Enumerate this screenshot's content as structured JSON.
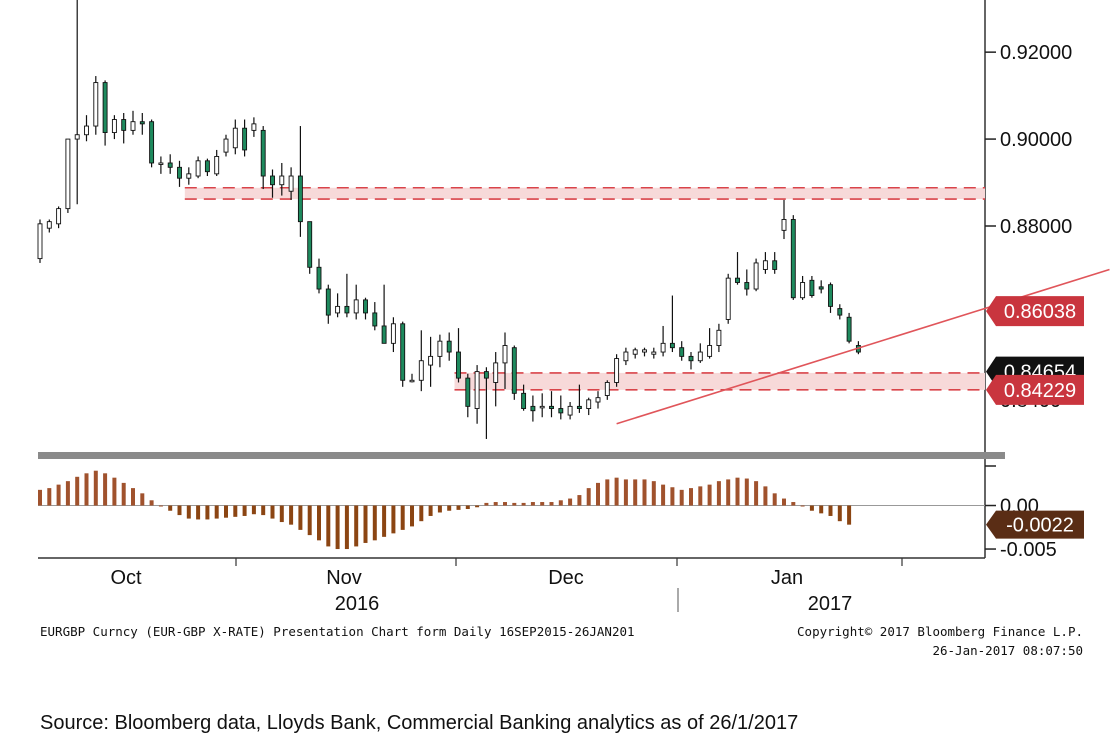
{
  "chart_data": [
    {
      "type": "candlestick",
      "ticker": "EURGBP Curncy (EUR-GBP X-RATE) Presentation Chart form Daily 16SEP2015-26JAN201",
      "copyright": "Copyright© 2017 Bloomberg Finance L.P.",
      "timestamp": "26-Jan-2017 08:07:50",
      "ylim": [
        0.828,
        0.932
      ],
      "yticks": [
        "0.92000",
        "0.90000",
        "0.88000"
      ],
      "hidden_tick_fragments": [
        "0.8465",
        "0.8400"
      ],
      "x_month_labels": [
        "Oct",
        "Nov",
        "Dec",
        "Jan"
      ],
      "x_year_labels": [
        "2016",
        "2017"
      ],
      "colors": {
        "up": "#ffffff",
        "down": "#1e8a5e",
        "outline": "#111111",
        "band_line": "#d9444a",
        "band_fill": "#f7d9d9",
        "trend": "#e0555a",
        "tag": "#c9353e",
        "tag_dark": "#111111"
      },
      "candles": [
        {
          "o": 0.8725,
          "h": 0.8815,
          "l": 0.8715,
          "c": 0.8805
        },
        {
          "o": 0.8795,
          "h": 0.8815,
          "l": 0.8785,
          "c": 0.881
        },
        {
          "o": 0.8805,
          "h": 0.8845,
          "l": 0.8795,
          "c": 0.884
        },
        {
          "o": 0.884,
          "h": 0.9,
          "l": 0.883,
          "c": 0.9
        },
        {
          "o": 0.9,
          "h": 0.95,
          "l": 0.885,
          "c": 0.901
        },
        {
          "o": 0.901,
          "h": 0.9055,
          "l": 0.8995,
          "c": 0.903
        },
        {
          "o": 0.903,
          "h": 0.9145,
          "l": 0.901,
          "c": 0.913
        },
        {
          "o": 0.913,
          "h": 0.9135,
          "l": 0.8985,
          "c": 0.9015
        },
        {
          "o": 0.9015,
          "h": 0.9055,
          "l": 0.9,
          "c": 0.9045
        },
        {
          "o": 0.9045,
          "h": 0.906,
          "l": 0.899,
          "c": 0.902
        },
        {
          "o": 0.902,
          "h": 0.9065,
          "l": 0.901,
          "c": 0.904
        },
        {
          "o": 0.904,
          "h": 0.906,
          "l": 0.901,
          "c": 0.9035
        },
        {
          "o": 0.904,
          "h": 0.9045,
          "l": 0.8935,
          "c": 0.8945
        },
        {
          "o": 0.8945,
          "h": 0.896,
          "l": 0.892,
          "c": 0.8945
        },
        {
          "o": 0.8945,
          "h": 0.8965,
          "l": 0.892,
          "c": 0.8935
        },
        {
          "o": 0.8935,
          "h": 0.895,
          "l": 0.889,
          "c": 0.891
        },
        {
          "o": 0.891,
          "h": 0.8935,
          "l": 0.8895,
          "c": 0.892
        },
        {
          "o": 0.8915,
          "h": 0.896,
          "l": 0.891,
          "c": 0.895
        },
        {
          "o": 0.895,
          "h": 0.8955,
          "l": 0.8915,
          "c": 0.8925
        },
        {
          "o": 0.892,
          "h": 0.8975,
          "l": 0.8915,
          "c": 0.896
        },
        {
          "o": 0.897,
          "h": 0.901,
          "l": 0.896,
          "c": 0.9
        },
        {
          "o": 0.898,
          "h": 0.9045,
          "l": 0.8965,
          "c": 0.9025
        },
        {
          "o": 0.9025,
          "h": 0.9045,
          "l": 0.896,
          "c": 0.8975
        },
        {
          "o": 0.902,
          "h": 0.905,
          "l": 0.9005,
          "c": 0.9035
        },
        {
          "o": 0.902,
          "h": 0.903,
          "l": 0.8885,
          "c": 0.8915
        },
        {
          "o": 0.8915,
          "h": 0.893,
          "l": 0.8865,
          "c": 0.8895
        },
        {
          "o": 0.8895,
          "h": 0.8945,
          "l": 0.887,
          "c": 0.8915
        },
        {
          "o": 0.888,
          "h": 0.8935,
          "l": 0.886,
          "c": 0.8915
        },
        {
          "o": 0.8915,
          "h": 0.903,
          "l": 0.8775,
          "c": 0.881
        },
        {
          "o": 0.881,
          "h": 0.881,
          "l": 0.869,
          "c": 0.8705
        },
        {
          "o": 0.8705,
          "h": 0.8725,
          "l": 0.8645,
          "c": 0.8655
        },
        {
          "o": 0.8655,
          "h": 0.8665,
          "l": 0.8575,
          "c": 0.8595
        },
        {
          "o": 0.86,
          "h": 0.8645,
          "l": 0.859,
          "c": 0.8615
        },
        {
          "o": 0.8615,
          "h": 0.869,
          "l": 0.859,
          "c": 0.86
        },
        {
          "o": 0.86,
          "h": 0.8665,
          "l": 0.8585,
          "c": 0.863
        },
        {
          "o": 0.863,
          "h": 0.8635,
          "l": 0.8585,
          "c": 0.86
        },
        {
          "o": 0.86,
          "h": 0.8625,
          "l": 0.856,
          "c": 0.857
        },
        {
          "o": 0.857,
          "h": 0.8665,
          "l": 0.854,
          "c": 0.853
        },
        {
          "o": 0.853,
          "h": 0.859,
          "l": 0.851,
          "c": 0.8575
        },
        {
          "o": 0.8575,
          "h": 0.858,
          "l": 0.843,
          "c": 0.8445
        },
        {
          "o": 0.8445,
          "h": 0.846,
          "l": 0.844,
          "c": 0.8445
        },
        {
          "o": 0.8445,
          "h": 0.856,
          "l": 0.842,
          "c": 0.849
        },
        {
          "o": 0.848,
          "h": 0.8545,
          "l": 0.843,
          "c": 0.85
        },
        {
          "o": 0.85,
          "h": 0.855,
          "l": 0.8475,
          "c": 0.8535
        },
        {
          "o": 0.8535,
          "h": 0.8555,
          "l": 0.849,
          "c": 0.851
        },
        {
          "o": 0.851,
          "h": 0.8565,
          "l": 0.844,
          "c": 0.845
        },
        {
          "o": 0.845,
          "h": 0.846,
          "l": 0.836,
          "c": 0.8385
        },
        {
          "o": 0.838,
          "h": 0.848,
          "l": 0.8345,
          "c": 0.8465
        },
        {
          "o": 0.8465,
          "h": 0.8475,
          "l": 0.831,
          "c": 0.845
        },
        {
          "o": 0.844,
          "h": 0.851,
          "l": 0.8385,
          "c": 0.8485
        },
        {
          "o": 0.8485,
          "h": 0.8555,
          "l": 0.8425,
          "c": 0.8525
        },
        {
          "o": 0.852,
          "h": 0.8525,
          "l": 0.84,
          "c": 0.8415
        },
        {
          "o": 0.8415,
          "h": 0.8435,
          "l": 0.8375,
          "c": 0.838
        },
        {
          "o": 0.8385,
          "h": 0.841,
          "l": 0.835,
          "c": 0.8375
        },
        {
          "o": 0.8385,
          "h": 0.8415,
          "l": 0.836,
          "c": 0.8385
        },
        {
          "o": 0.8385,
          "h": 0.842,
          "l": 0.836,
          "c": 0.838
        },
        {
          "o": 0.838,
          "h": 0.841,
          "l": 0.8355,
          "c": 0.837
        },
        {
          "o": 0.8365,
          "h": 0.8395,
          "l": 0.8355,
          "c": 0.8385
        },
        {
          "o": 0.8385,
          "h": 0.8435,
          "l": 0.837,
          "c": 0.838
        },
        {
          "o": 0.838,
          "h": 0.8405,
          "l": 0.8365,
          "c": 0.84
        },
        {
          "o": 0.8395,
          "h": 0.842,
          "l": 0.838,
          "c": 0.8405
        },
        {
          "o": 0.841,
          "h": 0.8445,
          "l": 0.84,
          "c": 0.844
        },
        {
          "o": 0.844,
          "h": 0.8505,
          "l": 0.843,
          "c": 0.8495
        },
        {
          "o": 0.849,
          "h": 0.852,
          "l": 0.848,
          "c": 0.851
        },
        {
          "o": 0.8505,
          "h": 0.852,
          "l": 0.8495,
          "c": 0.8515
        },
        {
          "o": 0.851,
          "h": 0.852,
          "l": 0.85,
          "c": 0.8515
        },
        {
          "o": 0.8505,
          "h": 0.852,
          "l": 0.8495,
          "c": 0.851
        },
        {
          "o": 0.851,
          "h": 0.857,
          "l": 0.85,
          "c": 0.853
        },
        {
          "o": 0.853,
          "h": 0.864,
          "l": 0.851,
          "c": 0.852
        },
        {
          "o": 0.852,
          "h": 0.8535,
          "l": 0.849,
          "c": 0.85
        },
        {
          "o": 0.85,
          "h": 0.851,
          "l": 0.847,
          "c": 0.849
        },
        {
          "o": 0.849,
          "h": 0.853,
          "l": 0.8485,
          "c": 0.851
        },
        {
          "o": 0.85,
          "h": 0.8565,
          "l": 0.8495,
          "c": 0.8525
        },
        {
          "o": 0.8525,
          "h": 0.8575,
          "l": 0.851,
          "c": 0.856
        },
        {
          "o": 0.8585,
          "h": 0.869,
          "l": 0.8575,
          "c": 0.868
        },
        {
          "o": 0.868,
          "h": 0.874,
          "l": 0.8665,
          "c": 0.867
        },
        {
          "o": 0.867,
          "h": 0.87,
          "l": 0.864,
          "c": 0.8655
        },
        {
          "o": 0.8655,
          "h": 0.8725,
          "l": 0.865,
          "c": 0.8715
        },
        {
          "o": 0.87,
          "h": 0.874,
          "l": 0.869,
          "c": 0.872
        },
        {
          "o": 0.872,
          "h": 0.874,
          "l": 0.869,
          "c": 0.87
        },
        {
          "o": 0.879,
          "h": 0.886,
          "l": 0.877,
          "c": 0.8815
        },
        {
          "o": 0.8815,
          "h": 0.8825,
          "l": 0.863,
          "c": 0.8635
        },
        {
          "o": 0.8635,
          "h": 0.8685,
          "l": 0.863,
          "c": 0.867
        },
        {
          "o": 0.8675,
          "h": 0.8685,
          "l": 0.8635,
          "c": 0.864
        },
        {
          "o": 0.866,
          "h": 0.8675,
          "l": 0.8645,
          "c": 0.8655
        },
        {
          "o": 0.8665,
          "h": 0.867,
          "l": 0.86,
          "c": 0.8615
        },
        {
          "o": 0.861,
          "h": 0.862,
          "l": 0.8585,
          "c": 0.8595
        },
        {
          "o": 0.859,
          "h": 0.86,
          "l": 0.853,
          "c": 0.8535
        },
        {
          "o": 0.8525,
          "h": 0.8535,
          "l": 0.8505,
          "c": 0.851
        }
      ],
      "bands": [
        {
          "upper": 0.8888,
          "lower": 0.8862,
          "from_index": 16
        },
        {
          "upper": 0.8462,
          "lower": 0.8423,
          "from_index": 45
        }
      ],
      "trendline": {
        "from": {
          "index": 62,
          "value": 0.8345
        },
        "to": {
          "index": 115,
          "value": 0.87
        }
      },
      "price_tags": [
        {
          "value": 0.8604,
          "label": "0.86038",
          "style": "red"
        },
        {
          "value": 0.8465,
          "label": "0.84654",
          "style": "dark"
        },
        {
          "value": 0.8423,
          "label": "0.84229",
          "style": "red"
        }
      ]
    },
    {
      "type": "bar",
      "panel": "oscillator",
      "ylim": [
        -0.0058,
        0.005
      ],
      "yticks": [
        "0.00",
        "-0.005"
      ],
      "last_value_label": "-0.0022",
      "colors": {
        "positive": "#a0522d",
        "negative": "#8b4513",
        "tag": "#5a2d15",
        "zero": "#999999"
      },
      "values": [
        0.0018,
        0.002,
        0.0024,
        0.0028,
        0.0033,
        0.0037,
        0.004,
        0.0037,
        0.0032,
        0.0026,
        0.002,
        0.0014,
        0.0006,
        0.0,
        -0.0006,
        -0.0011,
        -0.0015,
        -0.0016,
        -0.0016,
        -0.0015,
        -0.0014,
        -0.0013,
        -0.0012,
        -0.001,
        -0.0011,
        -0.0015,
        -0.0019,
        -0.0022,
        -0.0028,
        -0.0034,
        -0.004,
        -0.0047,
        -0.005,
        -0.005,
        -0.0047,
        -0.0043,
        -0.004,
        -0.0036,
        -0.0032,
        -0.0028,
        -0.0024,
        -0.0018,
        -0.0012,
        -0.0008,
        -0.0006,
        -0.0005,
        -0.0004,
        -0.0002,
        0.0003,
        0.0004,
        0.0004,
        0.0003,
        0.0003,
        0.0004,
        0.0004,
        0.0004,
        0.0006,
        0.0008,
        0.0012,
        0.002,
        0.0026,
        0.003,
        0.0032,
        0.003,
        0.003,
        0.003,
        0.0028,
        0.0024,
        0.0021,
        0.0018,
        0.002,
        0.0022,
        0.0024,
        0.0028,
        0.003,
        0.0032,
        0.0031,
        0.0028,
        0.0022,
        0.0014,
        0.0008,
        0.0004,
        0.0,
        -0.0006,
        -0.0009,
        -0.0012,
        -0.0018,
        -0.0022
      ]
    }
  ],
  "axes": {
    "months": [
      "Oct",
      "Nov",
      "Dec",
      "Jan"
    ],
    "years": [
      "2016",
      "2017"
    ]
  },
  "footer": {
    "ticker": "EURGBP Curncy (EUR-GBP X-RATE) Presentation Chart form Daily 16SEP2015-26JAN201",
    "copyright": "Copyright© 2017 Bloomberg Finance L.P.",
    "timestamp": "26-Jan-2017 08:07:50"
  },
  "source": "Source: Bloomberg data, Lloyds Bank, Commercial Banking analytics as of 26/1/2017"
}
